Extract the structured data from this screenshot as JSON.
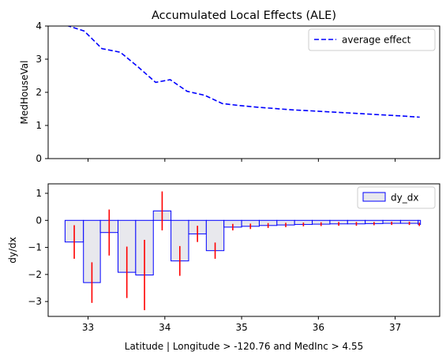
{
  "chart_data": [
    {
      "type": "line",
      "title": "Accumulated Local Effects (ALE)",
      "ylabel": "MedHouseVal",
      "xlabel": "",
      "xlim": [
        32.48,
        37.58
      ],
      "ylim": [
        0,
        4
      ],
      "yticks": [
        0,
        1,
        2,
        3,
        4
      ],
      "xticks": [
        33,
        34,
        35,
        36,
        37
      ],
      "show_xtick_labels": false,
      "grid": false,
      "legend": "upper right",
      "series": [
        {
          "name": "average effect",
          "color": "#0000ff",
          "linestyle": "dashed",
          "x": [
            32.72,
            32.95,
            33.18,
            33.42,
            33.65,
            33.88,
            34.07,
            34.29,
            34.52,
            34.75,
            34.98,
            35.21,
            35.44,
            35.67,
            35.91,
            36.14,
            36.37,
            36.6,
            36.83,
            37.06,
            37.32
          ],
          "y": [
            4.02,
            3.85,
            3.32,
            3.21,
            2.77,
            2.3,
            2.38,
            2.03,
            1.91,
            1.66,
            1.6,
            1.55,
            1.51,
            1.47,
            1.44,
            1.41,
            1.38,
            1.35,
            1.32,
            1.29,
            1.25
          ]
        }
      ]
    },
    {
      "type": "bar",
      "ylabel": "dy/dx",
      "xlabel": "Latitude | Longitude > -120.76 and MedInc > 4.55",
      "xlim": [
        32.48,
        37.58
      ],
      "ylim": [
        -3.55,
        1.35
      ],
      "yticks": [
        -3,
        -2,
        -1,
        0,
        1
      ],
      "xticks": [
        33,
        34,
        35,
        36,
        37
      ],
      "grid": false,
      "legend": "upper right",
      "bar_fill": "#e8e8ed",
      "bar_edge": "#0000ff",
      "errorbar_color": "#ff0000",
      "series": [
        {
          "name": "dy_dx",
          "bins": [
            [
              32.7,
              32.94
            ],
            [
              32.94,
              33.16
            ],
            [
              33.16,
              33.39
            ],
            [
              33.39,
              33.62
            ],
            [
              33.62,
              33.85
            ],
            [
              33.85,
              34.08
            ],
            [
              34.08,
              34.31
            ],
            [
              34.31,
              34.54
            ],
            [
              34.54,
              34.77
            ],
            [
              34.77,
              35.0
            ],
            [
              35.0,
              35.23
            ],
            [
              35.23,
              35.46
            ],
            [
              35.46,
              35.69
            ],
            [
              35.69,
              35.92
            ],
            [
              35.92,
              36.15
            ],
            [
              36.15,
              36.38
            ],
            [
              36.38,
              36.61
            ],
            [
              36.61,
              36.84
            ],
            [
              36.84,
              37.07
            ],
            [
              37.07,
              37.3
            ],
            [
              37.3,
              37.33
            ]
          ],
          "values": [
            -0.8,
            -2.3,
            -0.45,
            -1.92,
            -2.02,
            0.35,
            -1.5,
            -0.5,
            -1.12,
            -0.25,
            -0.22,
            -0.19,
            -0.17,
            -0.15,
            -0.14,
            -0.13,
            -0.13,
            -0.12,
            -0.11,
            -0.11,
            -0.15
          ],
          "errors": [
            0.62,
            0.75,
            0.85,
            0.95,
            1.3,
            0.72,
            0.55,
            0.3,
            0.3,
            0.12,
            0.1,
            0.09,
            0.08,
            0.07,
            0.07,
            0.07,
            0.07,
            0.06,
            0.06,
            0.06,
            0.06
          ]
        }
      ]
    }
  ]
}
